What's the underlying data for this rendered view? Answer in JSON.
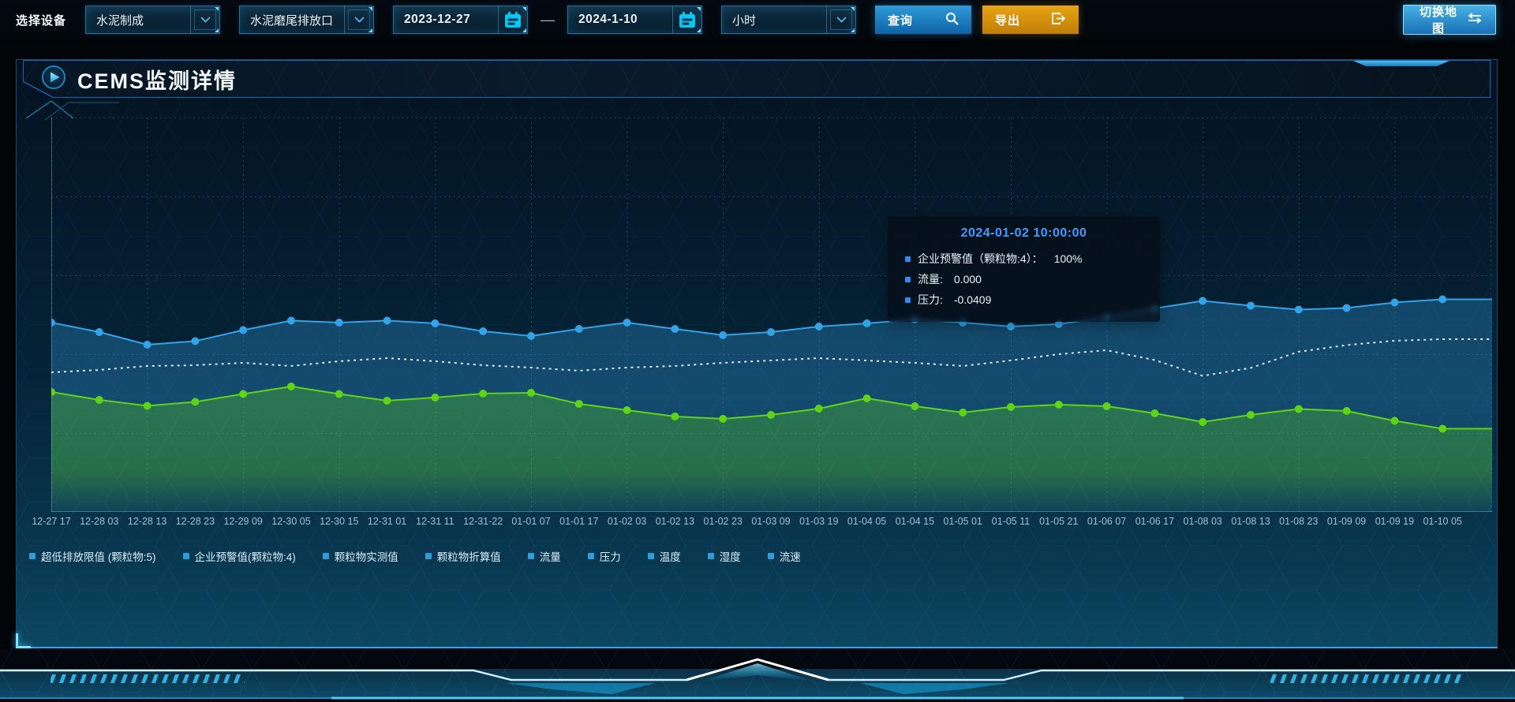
{
  "toolbar": {
    "device_label": "选择设备",
    "select_product": {
      "value": "水泥制成"
    },
    "select_outlet": {
      "value": "水泥磨尾排放口"
    },
    "date_start": "2023-12-27",
    "date_separator": "—",
    "date_end": "2024-1-10",
    "select_interval": {
      "value": "小时"
    },
    "query_label": "查询",
    "export_label": "导出",
    "switch_map_label": "切换地图"
  },
  "panel": {
    "title": "CEMS监测详情"
  },
  "tooltip": {
    "title": "2024-01-02 10:00:00",
    "marker_color": "#2d8cf0",
    "rows": [
      {
        "label": "企业预警值（颗粒物:4）：",
        "value": "100%"
      },
      {
        "label": "流量:",
        "value": "0.000"
      },
      {
        "label": "压力:",
        "value": "-0.0409"
      }
    ]
  },
  "colors": {
    "accent_cyan": "#00c9f2",
    "query_blue": "#1077bd",
    "export_orange": "#d3920f",
    "panel_border": "#134a7c",
    "panel_bottom_glow": "#2fa8e8",
    "grid_dot": "rgba(130,190,220,0.22)",
    "xlabel": "#9fc2d4",
    "legend_marker": "#2d9cdb"
  },
  "chart_data": {
    "type": "line",
    "title": "",
    "xlabel": "",
    "ylabel": "",
    "y_units": "normalized (no y-axis labels shown)",
    "ylim": [
      0,
      100
    ],
    "grid": true,
    "legend_position": "bottom",
    "x": [
      "12-27 17",
      "12-28 03",
      "12-28 13",
      "12-28 23",
      "12-29 09",
      "12-30 05",
      "12-30 15",
      "12-31 01",
      "12-31 11",
      "12-31-22",
      "01-01 07",
      "01-01 17",
      "01-02 03",
      "01-02 13",
      "01-02 23",
      "01-03 09",
      "01-03 19",
      "01-04 05",
      "01-04 15",
      "01-05 01",
      "01-05 11",
      "01-05 21",
      "01-06 07",
      "01-06 17",
      "01-08 03",
      "01-08 13",
      "01-08 23",
      "01-09 09",
      "01-09 19",
      "01-10 05"
    ],
    "series": [
      {
        "name": "企业预警值(颗粒物:4)",
        "color": "#33a3e8",
        "style": "solid",
        "markers": true,
        "area": true,
        "area_opacity": [
          0.3,
          0.1
        ],
        "values": [
          48,
          45.6,
          42.4,
          43.3,
          46.1,
          48.5,
          48,
          48.5,
          47.8,
          45.8,
          44.6,
          46.4,
          48,
          46.4,
          44.8,
          45.6,
          47,
          47.8,
          48.8,
          48,
          47,
          47.6,
          49.4,
          51.6,
          53.5,
          52.3,
          51.3,
          51.7,
          53.1,
          53.9
        ]
      },
      {
        "name": "颗粒物折算值",
        "color": "#f2f8fc",
        "style": "dotted",
        "markers": false,
        "area": false,
        "values": [
          35.4,
          36,
          37,
          37.2,
          37.8,
          37,
          38.2,
          39,
          38.2,
          37.2,
          36.6,
          35.8,
          36.6,
          37,
          37.8,
          38.4,
          39,
          38.4,
          37.8,
          37,
          38.4,
          40,
          41,
          38.5,
          34.5,
          36.5,
          40.6,
          42.3,
          43.4,
          43.8
        ]
      },
      {
        "name": "超低排放限值 (颗粒物:5)",
        "color": "#5fd416",
        "style": "solid",
        "markers": true,
        "area": true,
        "area_opacity": [
          0.3,
          0.03
        ],
        "values": [
          30.4,
          28.4,
          26.9,
          27.9,
          29.9,
          31.8,
          29.9,
          28.2,
          29,
          30,
          30.2,
          27.4,
          25.8,
          24.2,
          23.6,
          24.6,
          26.2,
          28.8,
          26.8,
          25.2,
          26.6,
          27.2,
          26.8,
          25,
          22.8,
          24.6,
          26.1,
          25.6,
          23.1,
          21.1
        ]
      }
    ],
    "legend": [
      "超低排放限值 (颗粒物:5)",
      "企业预警值(颗粒物:4)",
      "颗粒物实测值",
      "颗粒物折算值",
      "流量",
      "压力",
      "温度",
      "湿度",
      "流速"
    ]
  }
}
